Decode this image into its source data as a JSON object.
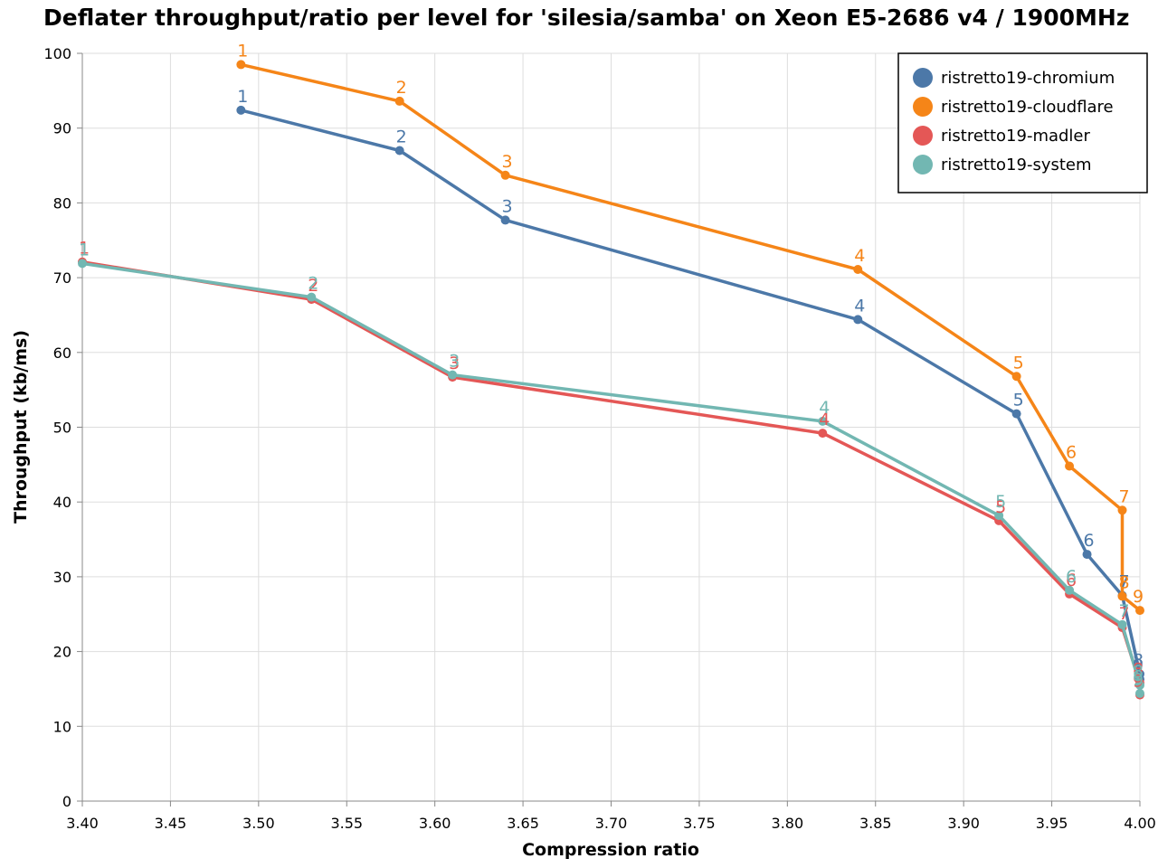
{
  "chart_data": {
    "type": "line",
    "title": "Deflater throughput/ratio per level for 'silesia/samba' on Xeon E5-2686 v4 / 1900MHz",
    "xlabel": "Compression ratio",
    "ylabel": "Throughput (kb/ms)",
    "xlim": [
      3.4,
      4.0
    ],
    "ylim": [
      0,
      100
    ],
    "xticks": [
      "3.40",
      "3.45",
      "3.50",
      "3.55",
      "3.60",
      "3.65",
      "3.70",
      "3.75",
      "3.80",
      "3.85",
      "3.90",
      "3.95",
      "4.00"
    ],
    "yticks": [
      "0",
      "10",
      "20",
      "30",
      "40",
      "50",
      "60",
      "70",
      "80",
      "90",
      "100"
    ],
    "grid": true,
    "legend_position": "top-right",
    "series": [
      {
        "name": "ristretto19-chromium",
        "color": "#4c78a8",
        "points": [
          {
            "level": "1",
            "x": 3.49,
            "y": 92.4
          },
          {
            "level": "2",
            "x": 3.58,
            "y": 87.0
          },
          {
            "level": "3",
            "x": 3.64,
            "y": 77.7
          },
          {
            "level": "4",
            "x": 3.84,
            "y": 64.4
          },
          {
            "level": "5",
            "x": 3.93,
            "y": 51.8
          },
          {
            "level": "6",
            "x": 3.97,
            "y": 33.0
          },
          {
            "level": "7",
            "x": 3.99,
            "y": 27.5
          },
          {
            "level": "8",
            "x": 4.0,
            "y": 17.0
          },
          {
            "level": "9",
            "x": 4.0,
            "y": 16.3
          }
        ]
      },
      {
        "name": "ristretto19-cloudflare",
        "color": "#f58518",
        "points": [
          {
            "level": "1",
            "x": 3.49,
            "y": 98.5
          },
          {
            "level": "2",
            "x": 3.58,
            "y": 93.6
          },
          {
            "level": "3",
            "x": 3.64,
            "y": 83.7
          },
          {
            "level": "4",
            "x": 3.84,
            "y": 71.1
          },
          {
            "level": "5",
            "x": 3.93,
            "y": 56.8
          },
          {
            "level": "6",
            "x": 3.96,
            "y": 44.8
          },
          {
            "level": "7",
            "x": 3.99,
            "y": 38.9
          },
          {
            "level": "8",
            "x": 3.99,
            "y": 27.4
          },
          {
            "level": "9",
            "x": 4.0,
            "y": 25.5
          }
        ]
      },
      {
        "name": "ristretto19-madler",
        "color": "#e45756",
        "points": [
          {
            "level": "1",
            "x": 3.4,
            "y": 72.1
          },
          {
            "level": "2",
            "x": 3.53,
            "y": 67.1
          },
          {
            "level": "3",
            "x": 3.61,
            "y": 56.7
          },
          {
            "level": "4",
            "x": 3.82,
            "y": 49.2
          },
          {
            "level": "5",
            "x": 3.92,
            "y": 37.5
          },
          {
            "level": "6",
            "x": 3.96,
            "y": 27.7
          },
          {
            "level": "7",
            "x": 3.99,
            "y": 23.2
          },
          {
            "level": "8",
            "x": 4.0,
            "y": 15.8
          },
          {
            "level": "9",
            "x": 4.0,
            "y": 14.2
          }
        ]
      },
      {
        "name": "ristretto19-system",
        "color": "#72b7b2",
        "points": [
          {
            "level": "1",
            "x": 3.4,
            "y": 71.9
          },
          {
            "level": "2",
            "x": 3.53,
            "y": 67.4
          },
          {
            "level": "3",
            "x": 3.61,
            "y": 57.0
          },
          {
            "level": "4",
            "x": 3.82,
            "y": 50.8
          },
          {
            "level": "5",
            "x": 3.92,
            "y": 38.2
          },
          {
            "level": "6",
            "x": 3.96,
            "y": 28.2
          },
          {
            "level": "7",
            "x": 3.99,
            "y": 23.6
          },
          {
            "level": "8",
            "x": 4.0,
            "y": 15.5
          },
          {
            "level": "9",
            "x": 4.0,
            "y": 14.4
          }
        ]
      }
    ]
  }
}
